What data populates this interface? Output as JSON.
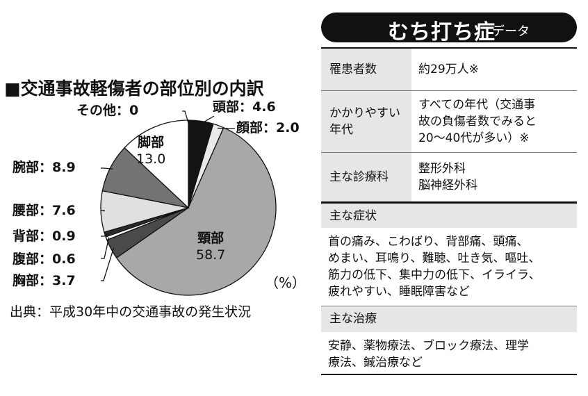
{
  "chart_data": {
    "type": "pie",
    "title": "■交通事故軽傷者の部位別の内訳",
    "unit": "（%）",
    "source": "出典：平成30年中の交通事故の発生状況",
    "categories": [
      "頭部",
      "顔部",
      "頸部",
      "胸部",
      "腹部",
      "背部",
      "腰部",
      "腕部",
      "脚部",
      "その他"
    ],
    "values": [
      4.6,
      2.0,
      58.7,
      3.7,
      0.6,
      0.9,
      7.6,
      8.9,
      13.0,
      0
    ],
    "labels": [
      "頭部：4.6",
      "顔部：2.0",
      "頸部\n58.7",
      "胸部：3.7",
      "腹部：0.6",
      "背部：0.9",
      "腰部：7.6",
      "腕部：8.9",
      "脚部\n13.0",
      "その他：0"
    ],
    "colors": [
      "#141414",
      "#eaeaea",
      "#a8a8a8",
      "#4a4a4a",
      "#ffffff",
      "#2a2a2a",
      "#e0e0e0",
      "#737373",
      "#ffffff",
      "#ffffff"
    ]
  },
  "panel": {
    "title": "むち打ち症",
    "subtitle": "データ",
    "rows": [
      {
        "key": "罹患者数",
        "value": "約29万人※"
      },
      {
        "key": "かかりやすい\n年代",
        "value": "すべての年代（交通事\n故の負傷者数でみると\n20～40代が多い）※"
      },
      {
        "key": "主な診療科",
        "value": "整形外科\n脳神経外科"
      }
    ],
    "symptoms_head": "主な症状",
    "symptoms": "首の痛み、こわばり、背部痛、頭痛、\nめまい、耳鳴り、難聴、吐き気、嘔吐、\n筋力の低下、集中力の低下、イライラ、\n疲れやすい、睡眠障害など",
    "treatment_head": "主な治療",
    "treatment": "安静、薬物療法、ブロック療法、理学\n療法、鍼治療など"
  }
}
